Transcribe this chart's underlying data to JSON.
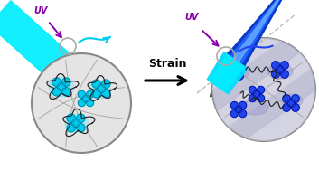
{
  "bg_color": "#ffffff",
  "figsize": [
    3.53,
    1.89
  ],
  "dpi": 100,
  "left_beam_color": "#00EEFF",
  "right_beam_top_color": "#00CCFF",
  "right_beam_mid_color": "#2255DD",
  "right_beam_bot_color": "#00DDFF",
  "uv_color": "#8800AA",
  "cyan_arrow_color": "#00CCEE",
  "blue_arrow_color": "#2244EE",
  "strain_label": "Strain",
  "left_flower_color": "#00CCEE",
  "left_flower_edge": "#007799",
  "right_flower_color": "#2244EE",
  "right_flower_edge": "#001188",
  "left_blob_color": "#88DDEE",
  "right_blob_color": "#9999CC",
  "left_circle_bg": "#e4e4e4",
  "right_circle_bg": "#dcdce8",
  "circle_edge": "#888888",
  "grid_color": "#aaaaaa",
  "chain_color": "#222222"
}
